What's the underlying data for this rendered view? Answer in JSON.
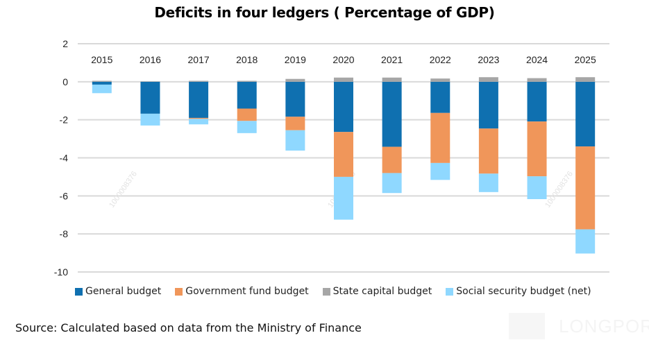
{
  "chart_data": {
    "type": "bar",
    "stacked": true,
    "title": "Deficits in four ledgers ( Percentage of GDP)",
    "xlabel": "",
    "ylabel": "",
    "ylim": [
      -10,
      2
    ],
    "yticks": [
      2,
      0,
      -2,
      -4,
      -6,
      -8,
      -10
    ],
    "grid": true,
    "legend_position": "bottom",
    "categories": [
      "2015",
      "2016",
      "2017",
      "2018",
      "2019",
      "2020",
      "2021",
      "2022",
      "2023",
      "2024",
      "2025"
    ],
    "series": [
      {
        "name": "General budget",
        "color": "#0f70b0",
        "values": [
          -0.15,
          -1.68,
          -1.9,
          -1.41,
          -1.84,
          -2.64,
          -3.42,
          -1.64,
          -2.46,
          -2.09,
          -3.4
        ]
      },
      {
        "name": "Government fund budget",
        "color": "#f0965a",
        "values": [
          0,
          0,
          -0.05,
          -0.65,
          -0.71,
          -2.36,
          -1.38,
          -2.63,
          -2.37,
          -2.88,
          -4.36
        ]
      },
      {
        "name": "State capital budget",
        "color": "#a6a6a6",
        "values": [
          0.05,
          0.02,
          0.05,
          0.05,
          0.15,
          0.22,
          0.22,
          0.17,
          0.24,
          0.19,
          0.24
        ]
      },
      {
        "name": "Social security budget (net)",
        "color": "#8fd8ff",
        "values": [
          -0.45,
          -0.62,
          -0.29,
          -0.64,
          -1.07,
          -2.25,
          -1.05,
          -0.89,
          -0.97,
          -1.2,
          -1.27
        ]
      }
    ]
  },
  "source": "Source: Calculated based on data from the Ministry of Finance",
  "watermark": "1000008376",
  "logo_text": "LONGPORT"
}
